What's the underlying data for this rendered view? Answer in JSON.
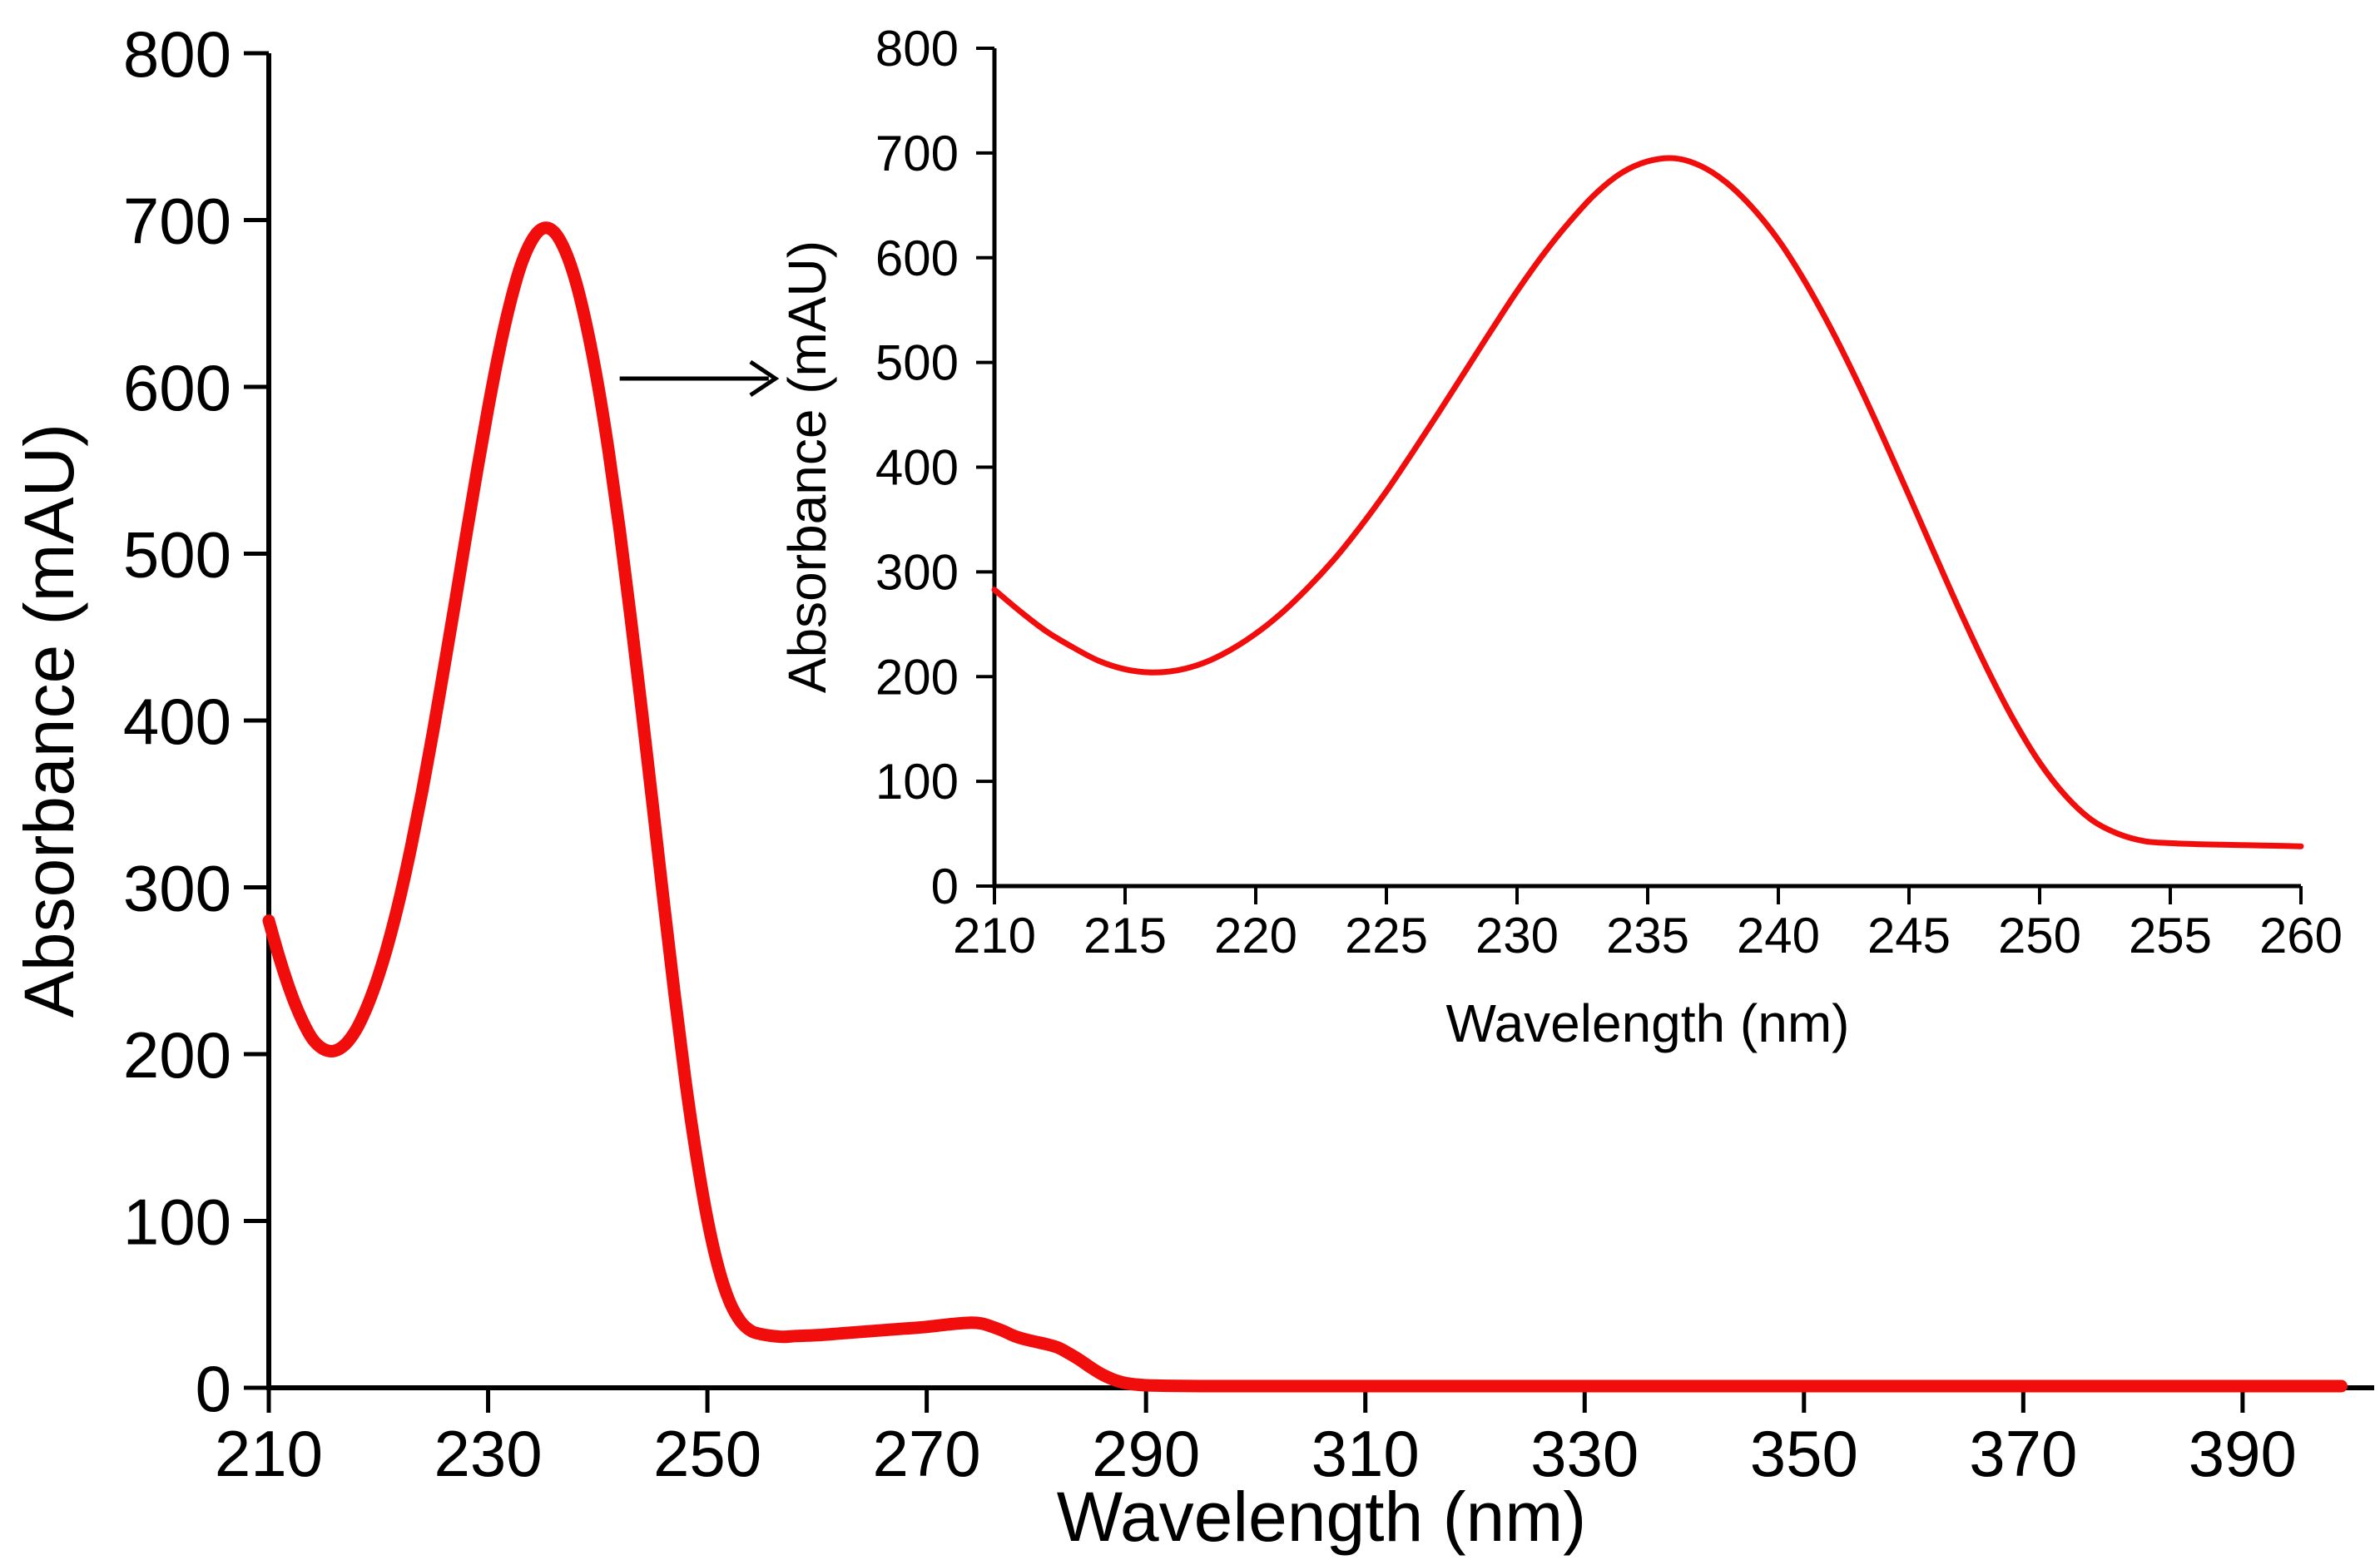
{
  "colors": {
    "curve": "#F20D0D",
    "axis": "#000000",
    "background": "#FFFFFF",
    "text": "#000000"
  },
  "chart_data": [
    {
      "id": "main",
      "type": "line",
      "title": "",
      "xlabel": "Wavelength (nm)",
      "ylabel": "Absorbance (mAU)",
      "xlim": [
        210,
        402
      ],
      "ylim": [
        0,
        800
      ],
      "grid": false,
      "legend": "none",
      "x_ticks": [
        210,
        230,
        250,
        270,
        290,
        310,
        330,
        350,
        370,
        390
      ],
      "y_ticks": [
        0,
        100,
        200,
        300,
        400,
        500,
        600,
        700,
        800
      ],
      "series": [
        {
          "name": "absorbance-spectrum",
          "color": "#F20D0D",
          "points": [
            [
              210,
              280
            ],
            [
              211,
              257
            ],
            [
              212,
              237
            ],
            [
              213,
              221
            ],
            [
              214,
              209
            ],
            [
              215,
              203
            ],
            [
              216,
              202
            ],
            [
              217,
              206
            ],
            [
              218,
              215
            ],
            [
              219,
              229
            ],
            [
              220,
              247
            ],
            [
              221,
              269
            ],
            [
              222,
              295
            ],
            [
              223,
              325
            ],
            [
              224,
              358
            ],
            [
              225,
              394
            ],
            [
              226,
              432
            ],
            [
              227,
              471
            ],
            [
              228,
              511
            ],
            [
              229,
              550
            ],
            [
              230,
              587
            ],
            [
              231,
              621
            ],
            [
              232,
              650
            ],
            [
              233,
              673
            ],
            [
              234,
              688
            ],
            [
              235,
              695
            ],
            [
              236,
              693
            ],
            [
              237,
              682
            ],
            [
              238,
              663
            ],
            [
              239,
              636
            ],
            [
              240,
              602
            ],
            [
              241,
              561
            ],
            [
              242,
              514
            ],
            [
              243,
              462
            ],
            [
              244,
              407
            ],
            [
              245,
              350
            ],
            [
              246,
              292
            ],
            [
              247,
              236
            ],
            [
              248,
              184
            ],
            [
              249,
              139
            ],
            [
              250,
              101
            ],
            [
              251,
              72
            ],
            [
              252,
              52
            ],
            [
              253,
              40
            ],
            [
              254,
              34
            ],
            [
              255,
              32
            ],
            [
              256,
              31
            ],
            [
              257,
              30.5
            ],
            [
              258,
              31
            ],
            [
              260,
              31.5
            ],
            [
              262,
              32.5
            ],
            [
              264,
              33.5
            ],
            [
              266,
              34.5
            ],
            [
              268,
              35.5
            ],
            [
              270,
              36.5
            ],
            [
              272,
              38
            ],
            [
              274,
              39
            ],
            [
              275,
              38.5
            ],
            [
              276,
              36.5
            ],
            [
              277,
              34
            ],
            [
              278,
              31
            ],
            [
              279,
              29
            ],
            [
              280,
              27.5
            ],
            [
              281,
              26
            ],
            [
              282,
              24
            ],
            [
              283,
              20.5
            ],
            [
              284,
              16.5
            ],
            [
              285,
              12
            ],
            [
              286,
              8
            ],
            [
              287,
              5
            ],
            [
              288,
              3
            ],
            [
              289,
              2
            ],
            [
              290,
              1.5
            ],
            [
              292,
              1.2
            ],
            [
              295,
              1
            ],
            [
              300,
              1
            ],
            [
              310,
              1
            ],
            [
              320,
              1
            ],
            [
              330,
              1
            ],
            [
              340,
              1
            ],
            [
              350,
              1
            ],
            [
              360,
              1
            ],
            [
              370,
              1
            ],
            [
              380,
              1
            ],
            [
              390,
              1
            ],
            [
              399,
              1
            ]
          ]
        }
      ],
      "annotations": [
        {
          "type": "arrow",
          "from": [
            242,
            605
          ],
          "to": [
            256.2,
            605
          ],
          "meaning": "points-to-inset-zoom"
        }
      ]
    },
    {
      "id": "inset",
      "type": "line",
      "title": "",
      "xlabel": "Wavelength (nm)",
      "ylabel": "Absorbance (mAU)",
      "xlim": [
        210,
        260
      ],
      "ylim": [
        0,
        800
      ],
      "grid": false,
      "legend": "none",
      "x_ticks": [
        210,
        215,
        220,
        225,
        230,
        235,
        240,
        245,
        250,
        255,
        260
      ],
      "y_ticks": [
        0,
        100,
        200,
        300,
        400,
        500,
        600,
        700,
        800
      ],
      "series": [
        {
          "name": "absorbance-spectrum-zoom",
          "color": "#F20D0D",
          "points": [
            [
              210,
              283
            ],
            [
              211,
              262
            ],
            [
              212,
              243
            ],
            [
              213,
              228
            ],
            [
              214,
              215
            ],
            [
              215,
              207
            ],
            [
              216,
              204
            ],
            [
              217,
              206
            ],
            [
              218,
              213
            ],
            [
              219,
              225
            ],
            [
              220,
              241
            ],
            [
              221,
              261
            ],
            [
              222,
              285
            ],
            [
              223,
              312
            ],
            [
              224,
              343
            ],
            [
              225,
              377
            ],
            [
              226,
              414
            ],
            [
              227,
              452
            ],
            [
              228,
              491
            ],
            [
              229,
              530
            ],
            [
              230,
              568
            ],
            [
              231,
              603
            ],
            [
              232,
              634
            ],
            [
              233,
              661
            ],
            [
              234,
              681
            ],
            [
              235,
              692
            ],
            [
              236,
              695
            ],
            [
              237,
              688
            ],
            [
              238,
              672
            ],
            [
              239,
              648
            ],
            [
              240,
              617
            ],
            [
              241,
              578
            ],
            [
              242,
              533
            ],
            [
              243,
              483
            ],
            [
              244,
              429
            ],
            [
              245,
              373
            ],
            [
              246,
              316
            ],
            [
              247,
              260
            ],
            [
              248,
              207
            ],
            [
              249,
              159
            ],
            [
              250,
              118
            ],
            [
              251,
              86
            ],
            [
              252,
              63
            ],
            [
              253,
              50
            ],
            [
              254,
              43
            ],
            [
              255,
              41
            ],
            [
              256,
              40
            ],
            [
              257,
              39.5
            ],
            [
              258,
              39
            ],
            [
              259,
              38.5
            ],
            [
              260,
              38
            ]
          ]
        }
      ],
      "annotations": []
    }
  ]
}
